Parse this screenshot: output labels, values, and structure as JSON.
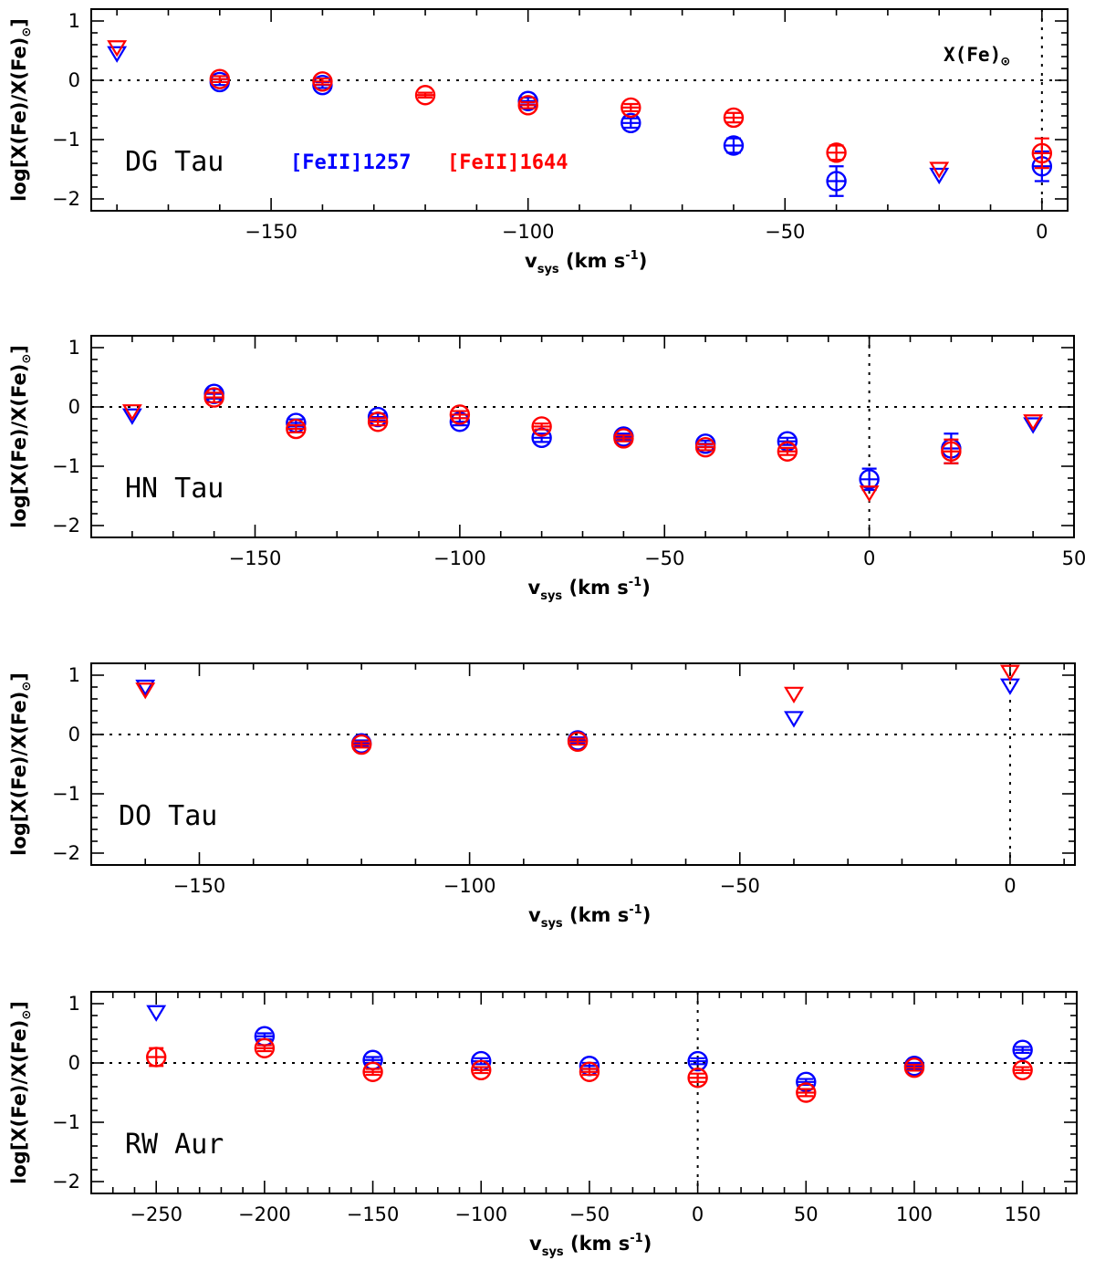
{
  "colors": {
    "fe1257": "#0000ff",
    "fe1644": "#ff0000",
    "axis": "#000000"
  },
  "chart_data": [
    {
      "type": "scatter",
      "star": "DG Tau",
      "xlabel_main": "v",
      "xlabel_sub": "sys",
      "xlabel_units": " (km s",
      "xlabel_sup": "-1",
      "xlabel_close": ")",
      "ylabel": "log[X(Fe)/X(Fe)",
      "ylabel_sub": "⊙",
      "ylabel_close": "]",
      "xlim": [
        -185,
        5
      ],
      "ylim": [
        -2.2,
        1.2
      ],
      "xticks": [
        -150,
        -100,
        -50,
        0
      ],
      "xtick_labels": [
        "−150",
        "−100",
        "−50",
        "0"
      ],
      "yticks": [
        -2,
        -1,
        0,
        1
      ],
      "ytick_labels": [
        "−2",
        "−1",
        "0",
        "1"
      ],
      "zero_line": true,
      "vline": 0,
      "legend": [
        {
          "text": "[FeII]1257",
          "color": "blue"
        },
        {
          "text": "[FeII]1644",
          "color": "red"
        }
      ],
      "ref_label": "X(Fe)",
      "ref_sub": "⊙",
      "series": [
        {
          "name": "[FeII]1257",
          "color": "blue",
          "points": [
            {
              "x": -160,
              "y": -0.03,
              "err": 0.05
            },
            {
              "x": -140,
              "y": -0.08,
              "err": 0.05
            },
            {
              "x": -100,
              "y": -0.35,
              "err": 0.06
            },
            {
              "x": -80,
              "y": -0.72,
              "err": 0.08
            },
            {
              "x": -60,
              "y": -1.1,
              "err": 0.12
            },
            {
              "x": -40,
              "y": -1.7,
              "err": 0.25
            },
            {
              "x": 0,
              "y": -1.45,
              "err": 0.25
            }
          ],
          "limits": [
            {
              "x": -180,
              "y": 0.45
            },
            {
              "x": -20,
              "y": -1.6
            }
          ]
        },
        {
          "name": "[FeII]1644",
          "color": "red",
          "points": [
            {
              "x": -160,
              "y": 0.02,
              "err": 0.05
            },
            {
              "x": -140,
              "y": -0.02,
              "err": 0.05
            },
            {
              "x": -120,
              "y": -0.25,
              "err": 0.04
            },
            {
              "x": -100,
              "y": -0.42,
              "err": 0.05
            },
            {
              "x": -80,
              "y": -0.46,
              "err": 0.06
            },
            {
              "x": -60,
              "y": -0.63,
              "err": 0.08
            },
            {
              "x": -40,
              "y": -1.22,
              "err": 0.12
            },
            {
              "x": 0,
              "y": -1.23,
              "err": 0.25
            }
          ],
          "limits": [
            {
              "x": -180,
              "y": 0.55
            },
            {
              "x": -20,
              "y": -1.5
            }
          ]
        }
      ]
    },
    {
      "type": "scatter",
      "star": "HN Tau",
      "xlabel_main": "v",
      "xlabel_sub": "sys",
      "xlabel_units": " (km s",
      "xlabel_sup": "-1",
      "xlabel_close": ")",
      "ylabel": "log[X(Fe)/X(Fe)",
      "ylabel_sub": "⊙",
      "ylabel_close": "]",
      "xlim": [
        -190,
        50
      ],
      "ylim": [
        -2.2,
        1.2
      ],
      "xticks": [
        -150,
        -100,
        -50,
        0,
        50
      ],
      "xtick_labels": [
        "−150",
        "−100",
        "−50",
        "0",
        "50"
      ],
      "yticks": [
        -2,
        -1,
        0,
        1
      ],
      "ytick_labels": [
        "−2",
        "−1",
        "0",
        "1"
      ],
      "zero_line": true,
      "vline": 0,
      "series": [
        {
          "name": "[FeII]1257",
          "color": "blue",
          "points": [
            {
              "x": -160,
              "y": 0.22,
              "err": 0.08
            },
            {
              "x": -140,
              "y": -0.27,
              "err": 0.06
            },
            {
              "x": -120,
              "y": -0.17,
              "err": 0.06
            },
            {
              "x": -100,
              "y": -0.25,
              "err": 0.06
            },
            {
              "x": -80,
              "y": -0.52,
              "err": 0.07
            },
            {
              "x": -60,
              "y": -0.5,
              "err": 0.05
            },
            {
              "x": -40,
              "y": -0.62,
              "err": 0.05
            },
            {
              "x": -20,
              "y": -0.58,
              "err": 0.06
            },
            {
              "x": 0,
              "y": -1.22,
              "err": 0.18
            },
            {
              "x": 20,
              "y": -0.7,
              "err": 0.25
            }
          ],
          "limits": [
            {
              "x": -180,
              "y": -0.15
            },
            {
              "x": 40,
              "y": -0.3
            }
          ]
        },
        {
          "name": "[FeII]1644",
          "color": "red",
          "points": [
            {
              "x": -160,
              "y": 0.16,
              "err": 0.08
            },
            {
              "x": -140,
              "y": -0.37,
              "err": 0.06
            },
            {
              "x": -120,
              "y": -0.25,
              "err": 0.06
            },
            {
              "x": -100,
              "y": -0.13,
              "err": 0.06
            },
            {
              "x": -80,
              "y": -0.33,
              "err": 0.05
            },
            {
              "x": -60,
              "y": -0.53,
              "err": 0.05
            },
            {
              "x": -40,
              "y": -0.68,
              "err": 0.05
            },
            {
              "x": -20,
              "y": -0.75,
              "err": 0.06
            },
            {
              "x": 20,
              "y": -0.75,
              "err": 0.2
            }
          ],
          "limits": [
            {
              "x": -180,
              "y": -0.08
            },
            {
              "x": 0,
              "y": -1.45
            },
            {
              "x": 40,
              "y": -0.25
            }
          ]
        }
      ]
    },
    {
      "type": "scatter",
      "star": "DO Tau",
      "xlabel_main": "v",
      "xlabel_sub": "sys",
      "xlabel_units": " (km s",
      "xlabel_sup": "-1",
      "xlabel_close": ")",
      "ylabel": "log[X(Fe)/X(Fe)",
      "ylabel_sub": "⊙",
      "ylabel_close": "]",
      "xlim": [
        -170,
        12
      ],
      "ylim": [
        -2.2,
        1.2
      ],
      "xticks": [
        -150,
        -100,
        -50,
        0
      ],
      "xtick_labels": [
        "−150",
        "−100",
        "−50",
        "0"
      ],
      "yticks": [
        -2,
        -1,
        0,
        1
      ],
      "ytick_labels": [
        "−2",
        "−1",
        "0",
        "1"
      ],
      "zero_line": true,
      "vline": 0,
      "series": [
        {
          "name": "[FeII]1257",
          "color": "blue",
          "points": [
            {
              "x": -120,
              "y": -0.15,
              "err": 0.05
            },
            {
              "x": -80,
              "y": -0.1,
              "err": 0.05
            }
          ],
          "limits": [
            {
              "x": -160,
              "y": 0.8
            },
            {
              "x": -40,
              "y": 0.27
            },
            {
              "x": 0,
              "y": 0.82
            }
          ]
        },
        {
          "name": "[FeII]1644",
          "color": "red",
          "points": [
            {
              "x": -120,
              "y": -0.17,
              "err": 0.05
            },
            {
              "x": -80,
              "y": -0.12,
              "err": 0.05
            }
          ],
          "limits": [
            {
              "x": -160,
              "y": 0.75
            },
            {
              "x": -40,
              "y": 0.68
            },
            {
              "x": 0,
              "y": 1.05
            }
          ]
        }
      ]
    },
    {
      "type": "scatter",
      "star": "RW Aur",
      "xlabel_main": "v",
      "xlabel_sub": "sys",
      "xlabel_units": " (km s",
      "xlabel_sup": "-1",
      "xlabel_close": ")",
      "ylabel": "log[X(Fe)/X(Fe)",
      "ylabel_sub": "⊙",
      "ylabel_close": "]",
      "xlim": [
        -280,
        175
      ],
      "ylim": [
        -2.2,
        1.2
      ],
      "xticks": [
        -250,
        -200,
        -150,
        -100,
        -50,
        0,
        50,
        100,
        150
      ],
      "xtick_labels": [
        "−250",
        "−200",
        "−150",
        "−100",
        "−50",
        "0",
        "50",
        "100",
        "150"
      ],
      "yticks": [
        -2,
        -1,
        0,
        1
      ],
      "ytick_labels": [
        "−2",
        "−1",
        "0",
        "1"
      ],
      "zero_line": true,
      "vline": 0,
      "series": [
        {
          "name": "[FeII]1257",
          "color": "blue",
          "points": [
            {
              "x": -200,
              "y": 0.45,
              "err": 0.05
            },
            {
              "x": -150,
              "y": 0.05,
              "err": 0.05
            },
            {
              "x": -100,
              "y": 0.03,
              "err": 0.05
            },
            {
              "x": -50,
              "y": -0.05,
              "err": 0.05
            },
            {
              "x": 0,
              "y": 0.03,
              "err": 0.05
            },
            {
              "x": 50,
              "y": -0.32,
              "err": 0.05
            },
            {
              "x": 100,
              "y": -0.05,
              "err": 0.05
            },
            {
              "x": 150,
              "y": 0.22,
              "err": 0.05
            }
          ],
          "limits": [
            {
              "x": -250,
              "y": 0.85
            }
          ]
        },
        {
          "name": "[FeII]1644",
          "color": "red",
          "points": [
            {
              "x": -250,
              "y": 0.1,
              "err": 0.15
            },
            {
              "x": -200,
              "y": 0.25,
              "err": 0.05
            },
            {
              "x": -150,
              "y": -0.15,
              "err": 0.05
            },
            {
              "x": -100,
              "y": -0.12,
              "err": 0.05
            },
            {
              "x": -50,
              "y": -0.15,
              "err": 0.05
            },
            {
              "x": 0,
              "y": -0.25,
              "err": 0.07
            },
            {
              "x": 50,
              "y": -0.5,
              "err": 0.06
            },
            {
              "x": 100,
              "y": -0.08,
              "err": 0.05
            },
            {
              "x": 150,
              "y": -0.12,
              "err": 0.05
            }
          ],
          "limits": []
        }
      ]
    }
  ]
}
